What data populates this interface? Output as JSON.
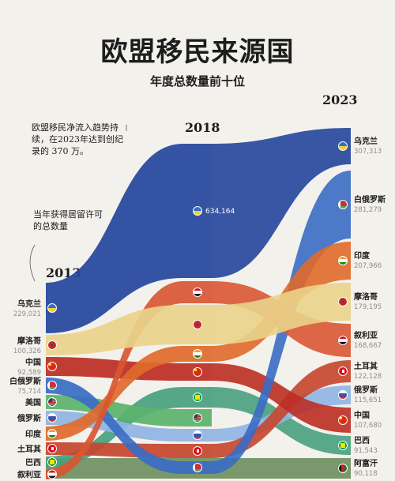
{
  "title": "欧盟移民来源国",
  "subtitle": "年度总数量前十位",
  "years": [
    "2013",
    "2018",
    "2023"
  ],
  "note_top": "欧盟移民净流入趋势持续，在2023年达到创纪录的 370 万。",
  "note_left": "当年获得居留许可的总数量",
  "chart_data": {
    "type": "sankey",
    "title": "欧盟移民来源国",
    "subtitle": "年度总数量前十位",
    "columns": [
      "2013",
      "2018",
      "2023"
    ],
    "countries": [
      {
        "name": "乌克兰",
        "color": "#24459c",
        "flag": "ukraine"
      },
      {
        "name": "摩洛哥",
        "color": "#ead38b",
        "flag": "morocco"
      },
      {
        "name": "中国",
        "color": "#bd2d23",
        "flag": "china"
      },
      {
        "name": "白俄罗斯",
        "color": "#3a6cc4",
        "flag": "belarus"
      },
      {
        "name": "美国",
        "color": "#5bb36b",
        "flag": "usa"
      },
      {
        "name": "俄罗斯",
        "color": "#8fb4e3",
        "flag": "russia"
      },
      {
        "name": "印度",
        "color": "#e06a2a",
        "flag": "india"
      },
      {
        "name": "土耳其",
        "color": "#c7452e",
        "flag": "turkey"
      },
      {
        "name": "巴西",
        "color": "#49a07f",
        "flag": "brazil"
      },
      {
        "name": "叙利亚",
        "color": "#d95633",
        "flag": "syria"
      },
      {
        "name": "阿富汗",
        "color": "#6b8f5e",
        "flag": "afghanistan"
      }
    ],
    "values_2013": [
      {
        "country": "乌克兰",
        "value": 229021,
        "label": "229,021"
      },
      {
        "country": "摩洛哥",
        "value": 100326,
        "label": "100,326"
      },
      {
        "country": "中国",
        "value": 92589,
        "label": "92,589"
      },
      {
        "country": "白俄罗斯",
        "value": 75714,
        "label": "75,714"
      },
      {
        "country": "美国",
        "value": null,
        "label": ""
      },
      {
        "country": "俄罗斯",
        "value": null,
        "label": ""
      },
      {
        "country": "印度",
        "value": null,
        "label": ""
      },
      {
        "country": "土耳其",
        "value": null,
        "label": ""
      },
      {
        "country": "巴西",
        "value": null,
        "label": ""
      },
      {
        "country": "叙利亚",
        "value": null,
        "label": ""
      }
    ],
    "values_2018": [
      {
        "country": "乌克兰",
        "value": 634164,
        "label": "634,164"
      },
      {
        "country": "叙利亚",
        "value": null,
        "label": ""
      },
      {
        "country": "摩洛哥",
        "value": null,
        "label": ""
      },
      {
        "country": "印度",
        "value": null,
        "label": ""
      },
      {
        "country": "中国",
        "value": null,
        "label": ""
      },
      {
        "country": "巴西",
        "value": null,
        "label": ""
      },
      {
        "country": "美国",
        "value": null,
        "label": ""
      },
      {
        "country": "俄罗斯",
        "value": null,
        "label": ""
      },
      {
        "country": "土耳其",
        "value": null,
        "label": ""
      },
      {
        "country": "白俄罗斯",
        "value": null,
        "label": ""
      }
    ],
    "values_2023": [
      {
        "country": "乌克兰",
        "value": 307313,
        "label": "307,313"
      },
      {
        "country": "白俄罗斯",
        "value": 281279,
        "label": "281,279"
      },
      {
        "country": "印度",
        "value": 207966,
        "label": "207,966"
      },
      {
        "country": "摩洛哥",
        "value": 179195,
        "label": "179,195"
      },
      {
        "country": "叙利亚",
        "value": 168667,
        "label": "168,667"
      },
      {
        "country": "土耳其",
        "value": 122128,
        "label": "122,128"
      },
      {
        "country": "俄罗斯",
        "value": 115651,
        "label": "115,651"
      },
      {
        "country": "中国",
        "value": 107680,
        "label": "107,680"
      },
      {
        "country": "巴西",
        "value": 91543,
        "label": "91,543"
      },
      {
        "country": "阿富汗",
        "value": 90118,
        "label": "90,118"
      }
    ]
  }
}
